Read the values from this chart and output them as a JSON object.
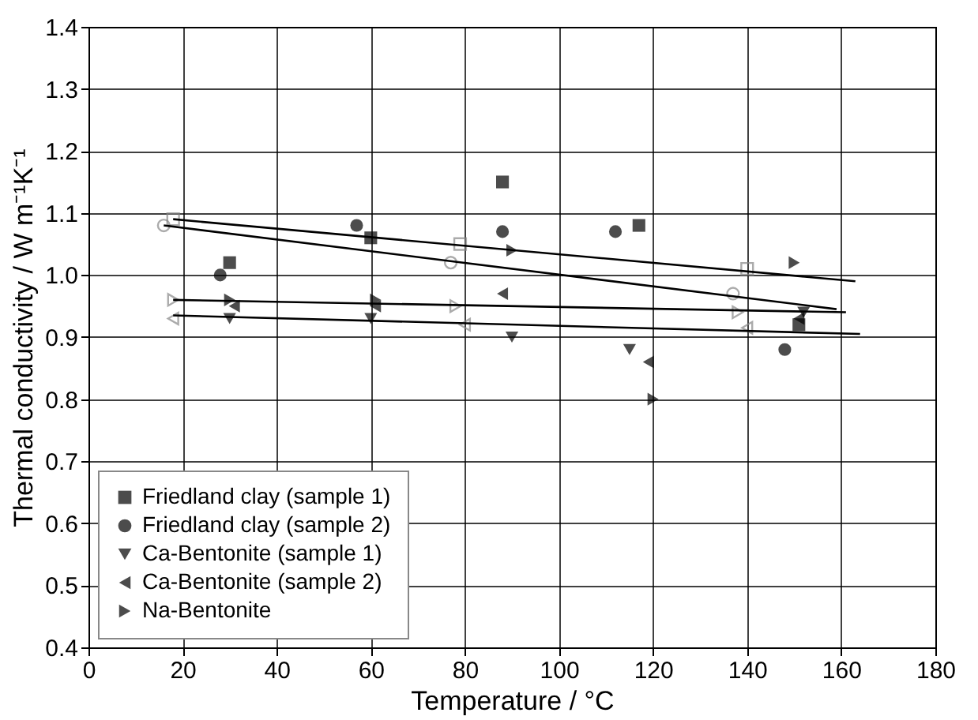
{
  "chart_data": {
    "type": "scatter",
    "xlabel": "Temperature / °C",
    "ylabel": "Thermal conductivity / W m⁻¹K⁻¹",
    "xlim": [
      0,
      180
    ],
    "ylim": [
      0.4,
      1.4
    ],
    "xticks": [
      0,
      20,
      40,
      60,
      80,
      100,
      120,
      140,
      160,
      180
    ],
    "yticks": [
      0.4,
      0.5,
      0.6,
      0.7,
      0.8,
      0.9,
      {
        "value": 1,
        "label": "1.0"
      },
      1.1,
      1.2,
      1.3,
      1.4
    ],
    "grid": true,
    "legend": "bottom left",
    "series": [
      {
        "name": "Friedland clay (sample 1)",
        "color": "#000000",
        "marker": "square",
        "x": [
          30,
          60,
          88,
          117,
          151
        ],
        "values": [
          1.02,
          1.06,
          1.15,
          1.08,
          0.92
        ]
      },
      {
        "name": "Friedland clay (sample 2)",
        "color": "#000000",
        "marker": "circle",
        "x": [
          28,
          57,
          88,
          112,
          148
        ],
        "values": [
          1.0,
          1.08,
          1.07,
          1.07,
          0.88
        ]
      },
      {
        "name": "Ca-Bentonite (sample 1)",
        "color": "#000000",
        "marker": "triangle-down",
        "x": [
          30,
          60,
          90,
          115,
          152
        ],
        "values": [
          0.93,
          0.93,
          0.9,
          0.88,
          0.94
        ]
      },
      {
        "name": "Ca-Bentonite (sample 2)",
        "color": "#000000",
        "marker": "triangle-left",
        "x": [
          31,
          61,
          88,
          119,
          151
        ],
        "values": [
          0.95,
          0.95,
          0.97,
          0.86,
          0.93
        ]
      },
      {
        "name": "Na-Bentonite",
        "color": "#000000",
        "marker": "triangle-right",
        "x": [
          30,
          61,
          90,
          120,
          150
        ],
        "values": [
          0.96,
          0.96,
          1.04,
          0.8,
          1.02
        ]
      },
      {
        "color": "#888888",
        "marker": "square",
        "x": [
          18,
          79,
          140
        ],
        "values": [
          1.09,
          1.05,
          1.01
        ]
      },
      {
        "color": "#888888",
        "marker": "circle",
        "x": [
          16,
          77,
          137
        ],
        "values": [
          1.08,
          1.02,
          0.97
        ]
      },
      {
        "color": "#888888",
        "marker": "triangle-right",
        "x": [
          18,
          78,
          138
        ],
        "values": [
          0.96,
          0.95,
          0.94
        ]
      },
      {
        "color": "#888888",
        "marker": "triangle-left",
        "x": [
          18,
          80,
          140
        ],
        "values": [
          0.93,
          0.92,
          0.915
        ]
      },
      {
        "type": "line",
        "color": "#000000",
        "x": [
          18,
          163
        ],
        "values": [
          1.09,
          0.99
        ]
      },
      {
        "type": "line",
        "color": "#000000",
        "x": [
          16,
          159
        ],
        "values": [
          1.08,
          0.945
        ]
      },
      {
        "type": "line",
        "color": "#000000",
        "x": [
          18,
          161
        ],
        "values": [
          0.96,
          0.94
        ]
      },
      {
        "type": "line",
        "color": "#000000",
        "x": [
          18,
          164
        ],
        "values": [
          0.935,
          0.905
        ]
      }
    ]
  }
}
